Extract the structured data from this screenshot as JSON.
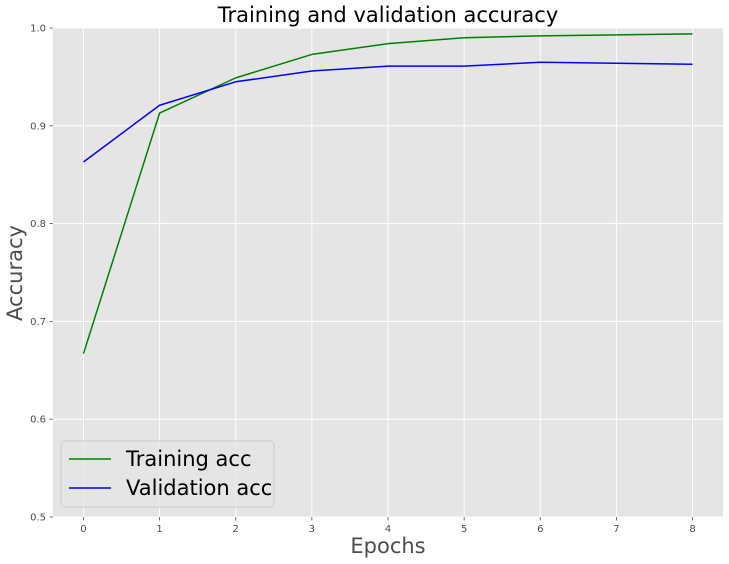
{
  "chart_data": {
    "type": "line",
    "title": "Training and validation accuracy",
    "xlabel": "Epochs",
    "ylabel": "Accuracy",
    "x": [
      0,
      1,
      2,
      3,
      4,
      5,
      6,
      7,
      8
    ],
    "xlim": [
      -0.4,
      8.4
    ],
    "ylim": [
      0.5,
      1.0
    ],
    "x_ticks": [
      "0",
      "1",
      "2",
      "3",
      "4",
      "5",
      "6",
      "7",
      "8"
    ],
    "y_ticks": [
      "0.5",
      "0.6",
      "0.7",
      "0.8",
      "0.9",
      "1.0"
    ],
    "grid": true,
    "legend_position": "lower-left",
    "background": "#e5e5e5",
    "series": [
      {
        "name": "Training acc",
        "color": "#008000",
        "values": [
          0.667,
          0.913,
          0.949,
          0.973,
          0.984,
          0.99,
          0.992,
          0.993,
          0.994
        ]
      },
      {
        "name": "Validation acc",
        "color": "#0000ff",
        "values": [
          0.863,
          0.921,
          0.945,
          0.956,
          0.961,
          0.961,
          0.965,
          0.964,
          0.963
        ]
      }
    ]
  }
}
